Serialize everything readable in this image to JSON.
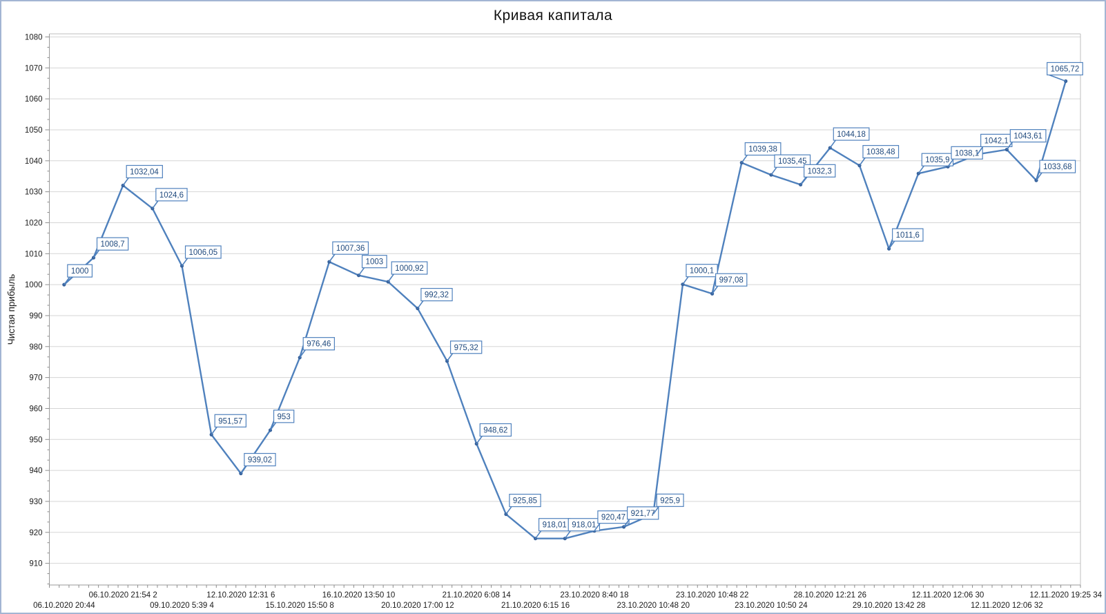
{
  "chart_title": "Кривая капитала",
  "colors": {
    "line": "#4f81bd",
    "marker": "#38639d",
    "label_text": "#1f497d",
    "label_border": "#4f81bd",
    "label_fill": "#ffffff",
    "grid": "#d5d5d5",
    "plot_border": "#bfbfbf",
    "axis": "#9a9a9a",
    "tick": "#8c8c8c",
    "tick_text": "#1a1a1a",
    "frame_border": "#a3b5d3"
  },
  "chart_data": {
    "type": "line",
    "title": "Кривая капитала",
    "xlabel": "",
    "ylabel": "Чистая прибыль",
    "legend": "none",
    "grid": "horizontal-major",
    "ylim": [
      903,
      1081
    ],
    "yticks": [
      910,
      920,
      930,
      940,
      950,
      960,
      970,
      980,
      990,
      1000,
      1010,
      1020,
      1030,
      1040,
      1050,
      1060,
      1070,
      1080
    ],
    "values": [
      1000,
      1008.7,
      1032.04,
      1024.6,
      1006.05,
      951.57,
      939.02,
      953,
      976.46,
      1007.36,
      1003,
      1000.92,
      992.32,
      975.32,
      948.62,
      925.85,
      918.01,
      918.01,
      920.47,
      921.77,
      925.9,
      1000.1,
      997.08,
      1039.38,
      1035.45,
      1032.3,
      1044.18,
      1038.48,
      1011.6,
      1035.9,
      1038.1,
      1042.1,
      1043.61,
      1033.68,
      1065.72
    ],
    "point_labels": [
      "1000",
      "1008,7",
      "1032,04",
      "1024,6",
      "1006,05",
      "951,57",
      "939,02",
      "953",
      "976,46",
      "1007,36",
      "1003",
      "1000,92",
      "992,32",
      "975,32",
      "948,62",
      "925,85",
      "918,01",
      "918,01",
      "920,47",
      "921,77",
      "925,9",
      "1000,1",
      "997,08",
      "1039,38",
      "1035,45",
      "1032,3",
      "1044,18",
      "1038,48",
      "1011,6",
      "1035,9",
      "1038,1",
      "1042,1",
      "1043,61",
      "1033,68",
      "1065,72"
    ],
    "x_tick_labels_row1": [
      {
        "index": 2,
        "label": "06.10.2020 21:54 2"
      },
      {
        "index": 6,
        "label": "12.10.2020 12:31 6"
      },
      {
        "index": 10,
        "label": "16.10.2020 13:50 10"
      },
      {
        "index": 14,
        "label": "21.10.2020 6:08 14"
      },
      {
        "index": 18,
        "label": "23.10.2020 8:40 18"
      },
      {
        "index": 22,
        "label": "23.10.2020 10:48 22"
      },
      {
        "index": 26,
        "label": "28.10.2020 12:21 26"
      },
      {
        "index": 30,
        "label": "12.11.2020 12:06 30"
      },
      {
        "index": 34,
        "label": "12.11.2020 19:25 34"
      }
    ],
    "x_tick_labels_row2": [
      {
        "index": 0,
        "label": "06.10.2020 20:44"
      },
      {
        "index": 4,
        "label": "09.10.2020 5:39 4"
      },
      {
        "index": 8,
        "label": "15.10.2020 15:50 8"
      },
      {
        "index": 12,
        "label": "20.10.2020 17:00 12"
      },
      {
        "index": 16,
        "label": "21.10.2020 6:15 16"
      },
      {
        "index": 20,
        "label": "23.10.2020 10:48 20"
      },
      {
        "index": 24,
        "label": "23.10.2020 10:50 24"
      },
      {
        "index": 28,
        "label": "29.10.2020 13:42 28"
      },
      {
        "index": 32,
        "label": "12.11.2020 12:06 32"
      }
    ],
    "label_offset_default": {
      "dx": 5,
      "dy": -11
    },
    "label_overrides": {
      "34": {
        "dx": -27,
        "dy": -9
      }
    }
  }
}
